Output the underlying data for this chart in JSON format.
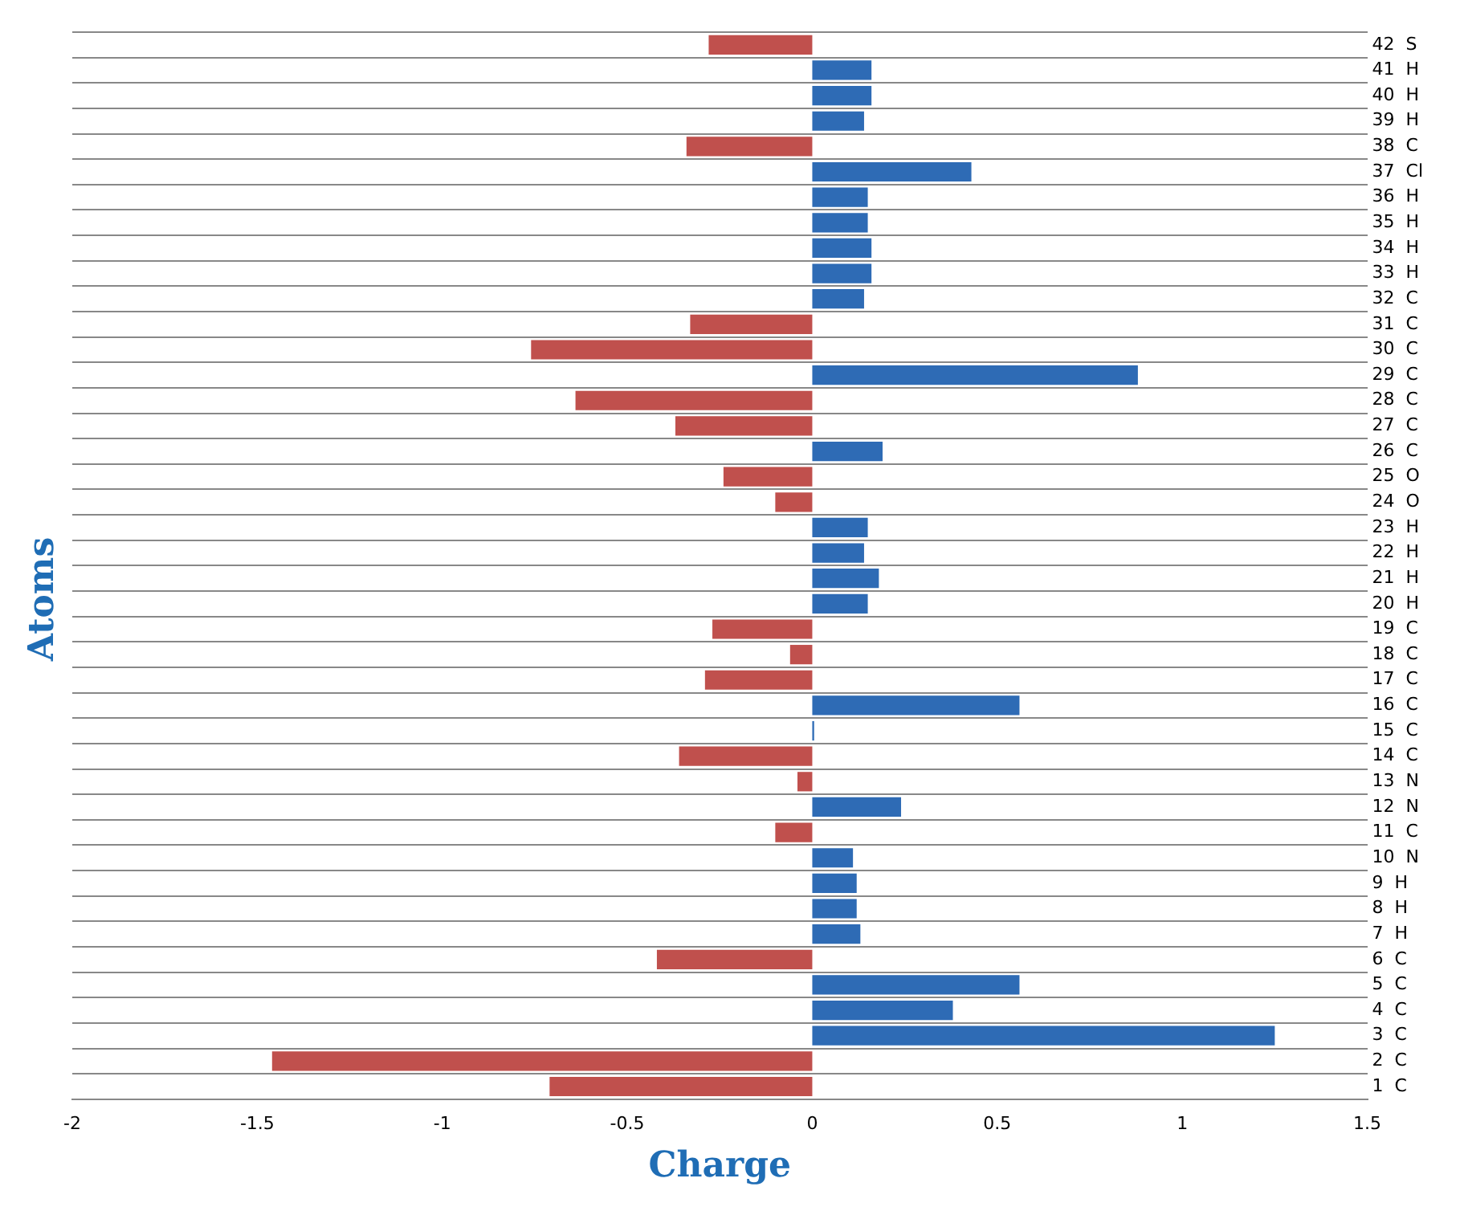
{
  "chart_data": {
    "type": "bar",
    "orientation": "horizontal",
    "xlabel": "Charge",
    "ylabel": "Atoms",
    "categories": [
      "42  S",
      "41  H",
      "40  H",
      "39  H",
      "38  C",
      "37  Cl",
      "36  H",
      "35  H",
      "34  H",
      "33  H",
      "32  C",
      "31  C",
      "30  C",
      "29  C",
      "28  C",
      "27  C",
      "26  C",
      "25  O",
      "24  O",
      "23  H",
      "22  H",
      "21  H",
      "20  H",
      "19  C",
      "18  C",
      "17  C",
      "16  C",
      "15  C",
      "14  C",
      "13  N",
      "12  N",
      "11  C",
      "10  N",
      "9  H",
      "8  H",
      "7  H",
      "6  C",
      "5  C",
      "4  C",
      "3  C",
      "2  C",
      "1  C"
    ],
    "values": [
      -0.28,
      0.16,
      0.16,
      0.14,
      -0.34,
      0.43,
      0.15,
      0.15,
      0.16,
      0.16,
      0.14,
      -0.33,
      -0.76,
      0.88,
      -0.64,
      -0.37,
      0.19,
      -0.24,
      -0.1,
      0.15,
      0.14,
      0.18,
      0.15,
      -0.27,
      -0.06,
      -0.29,
      0.56,
      0.005,
      -0.36,
      -0.04,
      0.24,
      -0.1,
      0.11,
      0.12,
      0.12,
      0.13,
      -0.42,
      0.56,
      0.38,
      1.25,
      -1.46,
      -0.71
    ],
    "colors": [
      "#c0504d",
      "#2e6bb5",
      "#2e6bb5",
      "#2e6bb5",
      "#c0504d",
      "#2e6bb5",
      "#2e6bb5",
      "#2e6bb5",
      "#2e6bb5",
      "#2e6bb5",
      "#2e6bb5",
      "#c0504d",
      "#c0504d",
      "#2e6bb5",
      "#c0504d",
      "#c0504d",
      "#2e6bb5",
      "#c0504d",
      "#c0504d",
      "#2e6bb5",
      "#2e6bb5",
      "#2e6bb5",
      "#2e6bb5",
      "#c0504d",
      "#c0504d",
      "#c0504d",
      "#2e6bb5",
      "#2e6bb5",
      "#c0504d",
      "#c0504d",
      "#2e6bb5",
      "#c0504d",
      "#2e6bb5",
      "#2e6bb5",
      "#2e6bb5",
      "#2e6bb5",
      "#c0504d",
      "#2e6bb5",
      "#2e6bb5",
      "#2e6bb5",
      "#c0504d",
      "#c0504d"
    ],
    "xlim": [
      -2,
      1.5
    ],
    "xticks": [
      -2,
      -1.5,
      -1,
      -0.5,
      0,
      0.5,
      1,
      1.5
    ],
    "grid": "y"
  }
}
